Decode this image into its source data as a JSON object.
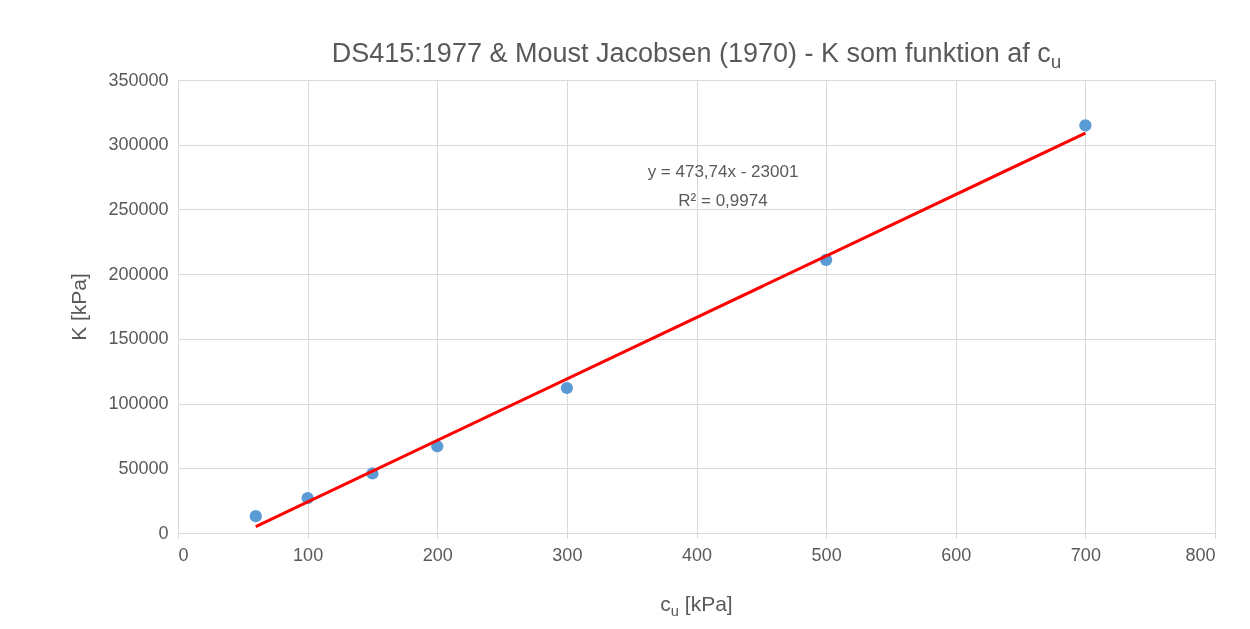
{
  "chart_data": {
    "type": "scatter",
    "title": "DS415:1977 & Moust Jacobsen (1970) - K som funktion af c$_{u}$",
    "xlabel": "c$_{u}$ [kPa]",
    "ylabel": "K  [kPa]",
    "x": [
      60,
      100,
      150,
      200,
      300,
      500,
      700
    ],
    "series": [
      {
        "color": "#5b9bd5",
        "marker": "circle",
        "values": [
          13000,
          27000,
          46000,
          67000,
          112000,
          211000,
          315000
        ]
      },
      {
        "type": "line",
        "color": "#ff0000",
        "x": [
          60,
          700
        ],
        "values": [
          5000,
          309000
        ],
        "marker": "none"
      }
    ],
    "annotations": [
      "y = 473,74x - 23001",
      "R² = 0,9974"
    ],
    "xlim": [
      0,
      800
    ],
    "xticks": [
      0,
      100,
      200,
      300,
      400,
      500,
      600,
      700,
      800
    ],
    "ylim": [
      0,
      350000
    ],
    "yticks": [
      0,
      50000,
      100000,
      150000,
      200000,
      250000,
      300000,
      350000
    ],
    "grid": true,
    "line_style": "solid"
  }
}
